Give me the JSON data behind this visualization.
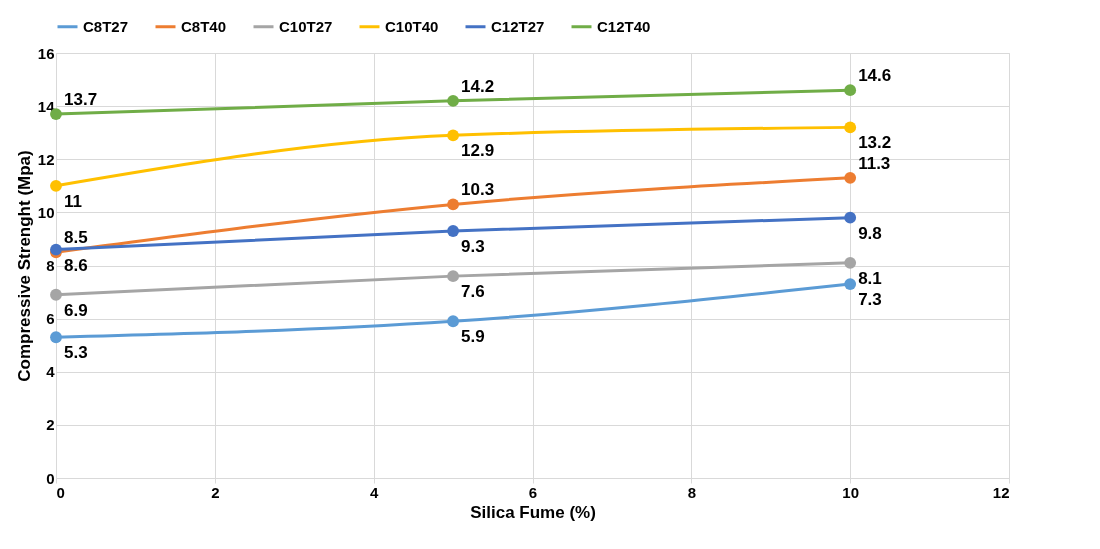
{
  "chart_data": {
    "type": "line",
    "xlabel": "Silica Fume (%)",
    "ylabel": "Compressive Strenght  (Mpa)",
    "x": [
      0,
      5,
      10
    ],
    "series": [
      {
        "name": "C8T27",
        "color": "#5b9bd5",
        "values": [
          5.3,
          5.9,
          7.3
        ]
      },
      {
        "name": "C8T40",
        "color": "#ed7d31",
        "values": [
          8.5,
          10.3,
          11.3
        ]
      },
      {
        "name": "C10T27",
        "color": "#a5a5a5",
        "values": [
          6.9,
          7.6,
          8.1
        ]
      },
      {
        "name": "C10T40",
        "color": "#ffc000",
        "values": [
          11,
          12.9,
          13.2
        ]
      },
      {
        "name": "C12T27",
        "color": "#4472c4",
        "values": [
          8.6,
          9.3,
          9.8
        ]
      },
      {
        "name": "C12T40",
        "color": "#70ad47",
        "values": [
          13.7,
          14.2,
          14.6
        ]
      }
    ],
    "xlim": [
      0,
      12
    ],
    "xticks": [
      0,
      2,
      4,
      6,
      8,
      10,
      12
    ],
    "ylim": [
      0,
      16
    ],
    "yticks": [
      0,
      2,
      4,
      6,
      8,
      10,
      12,
      14,
      16
    ],
    "grid": true,
    "legend": "top",
    "marker": "circle",
    "line_style": "solid",
    "data_labels": true
  }
}
